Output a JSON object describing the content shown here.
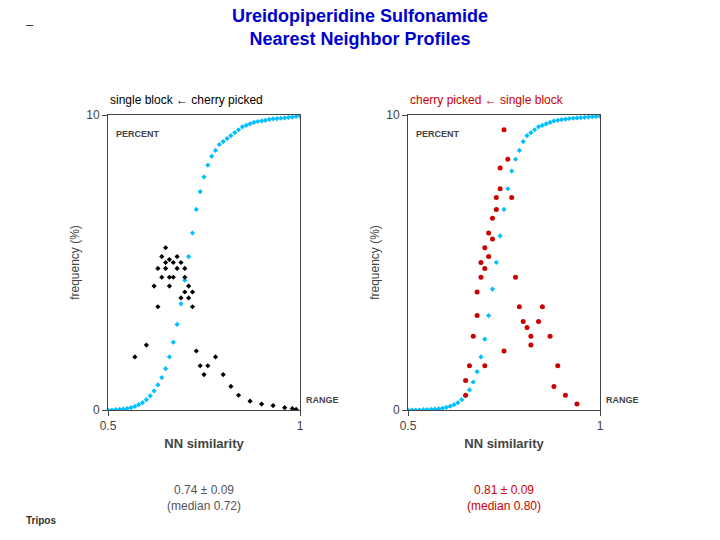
{
  "title": {
    "text": "Ureidopiperidine Sulfonamide\nNearest Neighbor Profiles",
    "color": "#0000CC"
  },
  "annotations": [
    "Tripos",
    "–"
  ],
  "chart_data": [
    {
      "type": "scatter",
      "subtitle": {
        "text": "single block ← cherry picked",
        "color": "#000000"
      },
      "x_label": "NN similarity",
      "y_label": "frequency (%)",
      "xlim": [
        0.5,
        1.0
      ],
      "xticks": [
        0.5,
        1
      ],
      "ylim": [
        0,
        10
      ],
      "yticks": [
        0,
        10
      ],
      "grid": false,
      "annotations": [
        {
          "text": "PERCENT"
        },
        {
          "text": "RANGE"
        },
        {
          "text": "0.74 ± 0.09\n(median 0.72)",
          "color": "#555555"
        }
      ],
      "series": [
        {
          "color": "#00BFFF",
          "marker": "diamond",
          "x": [
            0.5,
            0.51,
            0.52,
            0.53,
            0.54,
            0.55,
            0.56,
            0.57,
            0.58,
            0.59,
            0.6,
            0.61,
            0.62,
            0.63,
            0.64,
            0.65,
            0.66,
            0.67,
            0.68,
            0.69,
            0.7,
            0.71,
            0.72,
            0.73,
            0.74,
            0.75,
            0.76,
            0.77,
            0.78,
            0.79,
            0.8,
            0.81,
            0.82,
            0.83,
            0.84,
            0.85,
            0.86,
            0.87,
            0.88,
            0.89,
            0.9,
            0.91,
            0.92,
            0.93,
            0.94,
            0.95,
            0.96,
            0.97,
            0.98,
            0.99,
            1.0
          ],
          "values": [
            0.0,
            0.0,
            0.01,
            0.02,
            0.03,
            0.05,
            0.08,
            0.12,
            0.18,
            0.25,
            0.35,
            0.48,
            0.65,
            0.85,
            1.1,
            1.4,
            1.8,
            2.3,
            2.9,
            3.6,
            4.4,
            5.2,
            6.0,
            6.8,
            7.4,
            7.9,
            8.3,
            8.6,
            8.8,
            9.0,
            9.1,
            9.2,
            9.3,
            9.4,
            9.5,
            9.6,
            9.65,
            9.7,
            9.75,
            9.78,
            9.8,
            9.82,
            9.85,
            9.87,
            9.88,
            9.89,
            9.9,
            9.92,
            9.93,
            9.95,
            9.96
          ]
        },
        {
          "color": "#000000",
          "marker": "diamond",
          "x": [
            0.62,
            0.63,
            0.63,
            0.64,
            0.64,
            0.65,
            0.65,
            0.65,
            0.66,
            0.66,
            0.66,
            0.67,
            0.67,
            0.68,
            0.68,
            0.69,
            0.69,
            0.7,
            0.7,
            0.7,
            0.71,
            0.71,
            0.72,
            0.72,
            0.73,
            0.74,
            0.75,
            0.76,
            0.78,
            0.8,
            0.82,
            0.84,
            0.87,
            0.9,
            0.93,
            0.96,
            0.98,
            0.99,
            0.57,
            0.6
          ],
          "values": [
            4.2,
            4.8,
            3.5,
            5.2,
            4.5,
            5.5,
            5.0,
            4.8,
            4.5,
            5.1,
            4.2,
            5.0,
            4.5,
            4.8,
            5.2,
            3.8,
            5.0,
            4.5,
            4.0,
            4.8,
            3.8,
            4.2,
            3.5,
            4.0,
            2.0,
            1.5,
            1.2,
            1.5,
            1.8,
            1.2,
            0.8,
            0.5,
            0.3,
            0.2,
            0.15,
            0.08,
            0.05,
            0.02,
            1.8,
            2.2
          ]
        }
      ]
    },
    {
      "type": "scatter",
      "subtitle": {
        "text": "cherry picked ← single block",
        "color": "#CC0000"
      },
      "x_label": "NN similarity",
      "y_label": "frequency (%)",
      "xlim": [
        0.5,
        1.0
      ],
      "xticks": [
        0.5,
        1
      ],
      "ylim": [
        0,
        10
      ],
      "yticks": [
        0,
        10
      ],
      "grid": false,
      "annotations": [
        {
          "text": "PERCENT"
        },
        {
          "text": "RANGE"
        },
        {
          "text": "0.81 ± 0.09\n(median 0.80)",
          "color": "#CC0000"
        }
      ],
      "series": [
        {
          "color": "#00BFFF",
          "marker": "diamond",
          "x": [
            0.5,
            0.51,
            0.52,
            0.53,
            0.54,
            0.55,
            0.56,
            0.57,
            0.58,
            0.59,
            0.6,
            0.61,
            0.62,
            0.63,
            0.64,
            0.65,
            0.66,
            0.67,
            0.68,
            0.69,
            0.7,
            0.71,
            0.72,
            0.73,
            0.74,
            0.75,
            0.76,
            0.77,
            0.78,
            0.79,
            0.8,
            0.81,
            0.82,
            0.83,
            0.84,
            0.85,
            0.86,
            0.87,
            0.88,
            0.89,
            0.9,
            0.91,
            0.92,
            0.93,
            0.94,
            0.95,
            0.96,
            0.97,
            0.98,
            0.99,
            1.0
          ],
          "values": [
            0.0,
            0.0,
            0.0,
            0.0,
            0.01,
            0.01,
            0.02,
            0.03,
            0.04,
            0.06,
            0.09,
            0.13,
            0.18,
            0.25,
            0.35,
            0.48,
            0.68,
            0.95,
            1.3,
            1.8,
            2.4,
            3.2,
            4.1,
            5.0,
            5.9,
            6.8,
            7.5,
            8.1,
            8.5,
            8.8,
            9.1,
            9.3,
            9.4,
            9.5,
            9.6,
            9.65,
            9.7,
            9.75,
            9.8,
            9.82,
            9.84,
            9.86,
            9.88,
            9.89,
            9.9,
            9.91,
            9.92,
            9.93,
            9.94,
            9.95,
            9.96
          ]
        },
        {
          "color": "#CC0000",
          "marker": "circle",
          "x": [
            0.66,
            0.67,
            0.68,
            0.68,
            0.69,
            0.69,
            0.7,
            0.7,
            0.71,
            0.71,
            0.72,
            0.72,
            0.73,
            0.73,
            0.74,
            0.74,
            0.75,
            0.76,
            0.77,
            0.78,
            0.79,
            0.8,
            0.81,
            0.82,
            0.84,
            0.85,
            0.87,
            0.89,
            0.91,
            0.94,
            0.65,
            0.7,
            0.75,
            0.82,
            0.88,
            0.65
          ],
          "values": [
            1.5,
            2.5,
            3.2,
            4.0,
            4.5,
            5.0,
            4.8,
            5.5,
            5.2,
            6.0,
            5.8,
            6.5,
            7.2,
            6.8,
            8.2,
            7.5,
            9.5,
            8.5,
            7.2,
            4.5,
            3.5,
            3.0,
            2.8,
            2.5,
            3.0,
            3.5,
            2.5,
            1.5,
            0.5,
            0.2,
            1.0,
            1.5,
            2.0,
            2.2,
            0.8,
            0.5
          ]
        }
      ]
    }
  ]
}
